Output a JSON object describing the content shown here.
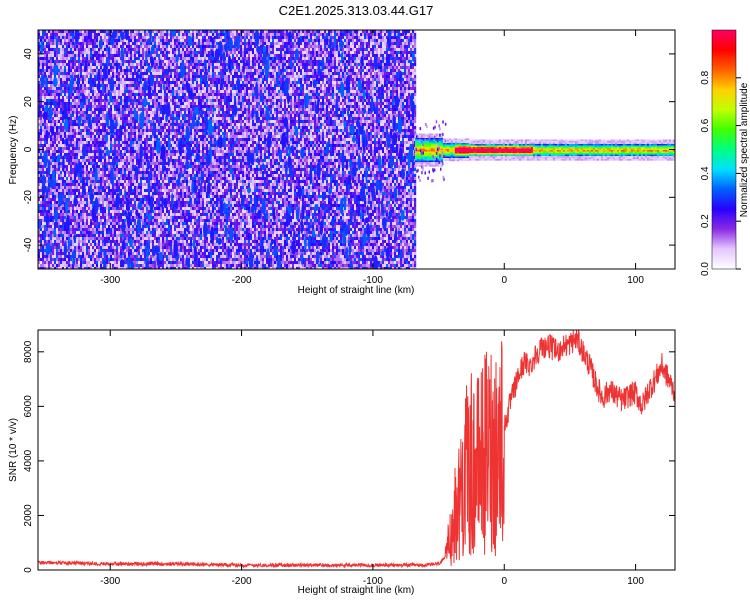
{
  "title": "C2E1.2025.313.03.44.G17",
  "chart_data": [
    {
      "type": "heatmap",
      "xlabel": "Height of straight line (km)",
      "ylabel": "Frequency (Hz)",
      "xlim": [
        -355,
        130
      ],
      "ylim": [
        -50,
        50
      ],
      "xticks": [
        "-300",
        "-200",
        "-100",
        "0",
        "100"
      ],
      "xtick_values": [
        -300,
        -200,
        -100,
        0,
        100
      ],
      "yticks": [
        "40",
        "20",
        "0",
        "-20",
        "-40"
      ],
      "ytick_values": [
        40,
        20,
        0,
        -20,
        -40
      ],
      "noise_region_x": [
        -355,
        -68
      ],
      "signal_region_x": [
        -68,
        130
      ],
      "signal_center_freq": 0,
      "colorbar": {
        "label": "Normalized spectral amplitude",
        "range": [
          0,
          1
        ],
        "ticks": [
          "0.0",
          "0.2",
          "0.4",
          "0.6",
          "0.8"
        ],
        "tick_values": [
          0.0,
          0.2,
          0.4,
          0.6,
          0.8
        ],
        "colors": [
          "#ffffff",
          "#e4c8ff",
          "#8a2be2",
          "#2a00ff",
          "#0060ff",
          "#00e0ff",
          "#00ff80",
          "#40ff00",
          "#c0ff00",
          "#ffd000",
          "#ff6000",
          "#ff0000",
          "#ff0066"
        ]
      }
    },
    {
      "type": "line",
      "xlabel": "Height of straight line (km)",
      "ylabel": "SNR (10 * v/v)",
      "xlim": [
        -355,
        130
      ],
      "ylim": [
        0,
        8800
      ],
      "xticks": [
        "-300",
        "-200",
        "-100",
        "0",
        "100"
      ],
      "xtick_values": [
        -300,
        -200,
        -100,
        0,
        100
      ],
      "yticks": [
        "0",
        "2000",
        "4000",
        "6000",
        "8000"
      ],
      "ytick_values": [
        0,
        2000,
        4000,
        6000,
        8000
      ],
      "series": [
        {
          "color": "#ee3333",
          "x": [
            -355,
            -300,
            -250,
            -200,
            -150,
            -100,
            -60,
            -50,
            -45,
            -40,
            -35,
            -30,
            -25,
            -20,
            -15,
            -10,
            -5,
            0,
            5,
            10,
            15,
            20,
            25,
            30,
            35,
            40,
            45,
            50,
            55,
            60,
            65,
            70,
            75,
            80,
            85,
            90,
            95,
            100,
            105,
            110,
            115,
            120,
            125,
            130
          ],
          "y": [
            250,
            200,
            200,
            150,
            150,
            150,
            150,
            200,
            400,
            1500,
            2500,
            3500,
            3800,
            3800,
            4200,
            4500,
            4500,
            5200,
            6200,
            7000,
            7600,
            7500,
            8000,
            8200,
            8200,
            8000,
            8200,
            8300,
            8500,
            8000,
            7500,
            6800,
            6300,
            6600,
            6400,
            6200,
            6400,
            6500,
            6000,
            6600,
            7000,
            7500,
            7000,
            6500
          ]
        }
      ]
    }
  ]
}
